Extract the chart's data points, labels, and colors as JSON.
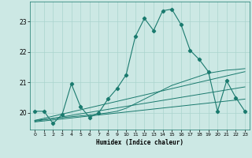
{
  "xlabel": "Humidex (Indice chaleur)",
  "bg_color": "#cce8e4",
  "line_color": "#1a7a6e",
  "grid_color": "#aad4ce",
  "xlim": [
    -0.5,
    23.5
  ],
  "ylim": [
    19.45,
    23.65
  ],
  "yticks": [
    20,
    21,
    22,
    23
  ],
  "xticks": [
    0,
    1,
    2,
    3,
    4,
    5,
    6,
    7,
    8,
    9,
    10,
    11,
    12,
    13,
    14,
    15,
    16,
    17,
    18,
    19,
    20,
    21,
    22,
    23
  ],
  "line1_x": [
    0,
    1,
    2,
    3,
    4,
    5,
    6,
    7,
    8,
    9,
    10,
    11,
    12,
    13,
    14,
    15,
    16,
    17,
    18,
    19,
    20,
    21,
    22,
    23
  ],
  "line1_y": [
    20.05,
    20.05,
    19.65,
    19.95,
    20.95,
    20.2,
    19.85,
    20.0,
    20.45,
    20.8,
    21.25,
    22.5,
    23.1,
    22.7,
    23.35,
    23.4,
    22.9,
    22.05,
    21.75,
    21.35,
    20.05,
    21.05,
    20.5,
    20.05
  ],
  "line2_x": [
    0,
    1,
    2,
    3,
    4,
    5,
    6,
    7,
    8,
    9,
    10,
    11,
    12,
    13,
    14,
    15,
    16,
    17,
    18,
    19,
    20,
    21,
    22,
    23
  ],
  "line2_y": [
    19.75,
    19.78,
    19.81,
    19.84,
    19.87,
    19.9,
    19.93,
    19.96,
    20.0,
    20.05,
    20.15,
    20.3,
    20.45,
    20.6,
    20.75,
    20.9,
    21.0,
    21.1,
    21.2,
    21.3,
    21.35,
    21.4,
    21.42,
    21.45
  ],
  "line3_x": [
    0,
    23
  ],
  "line3_y": [
    19.75,
    21.35
  ],
  "line4_x": [
    0,
    23
  ],
  "line4_y": [
    19.7,
    20.45
  ],
  "line5_x": [
    0,
    23
  ],
  "line5_y": [
    19.72,
    20.85
  ]
}
